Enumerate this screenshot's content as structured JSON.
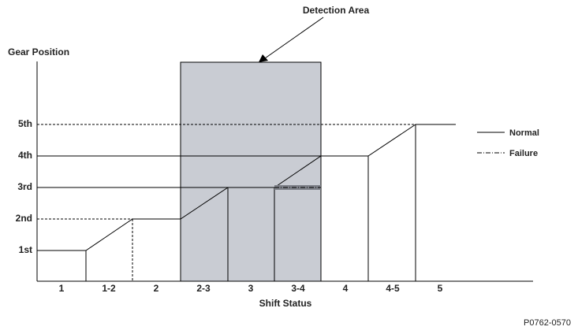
{
  "title": "Detection Area",
  "y_axis": {
    "label": "Gear Position",
    "levels": [
      "5th",
      "4th",
      "3rd",
      "2nd",
      "1st"
    ]
  },
  "x_axis": {
    "label": "Shift Status",
    "categories": [
      "1",
      "1-2",
      "2",
      "2-3",
      "3",
      "3-4",
      "4",
      "4-5",
      "5"
    ]
  },
  "legend": [
    "Normal",
    "Failure"
  ],
  "code": "P0762-0570"
}
